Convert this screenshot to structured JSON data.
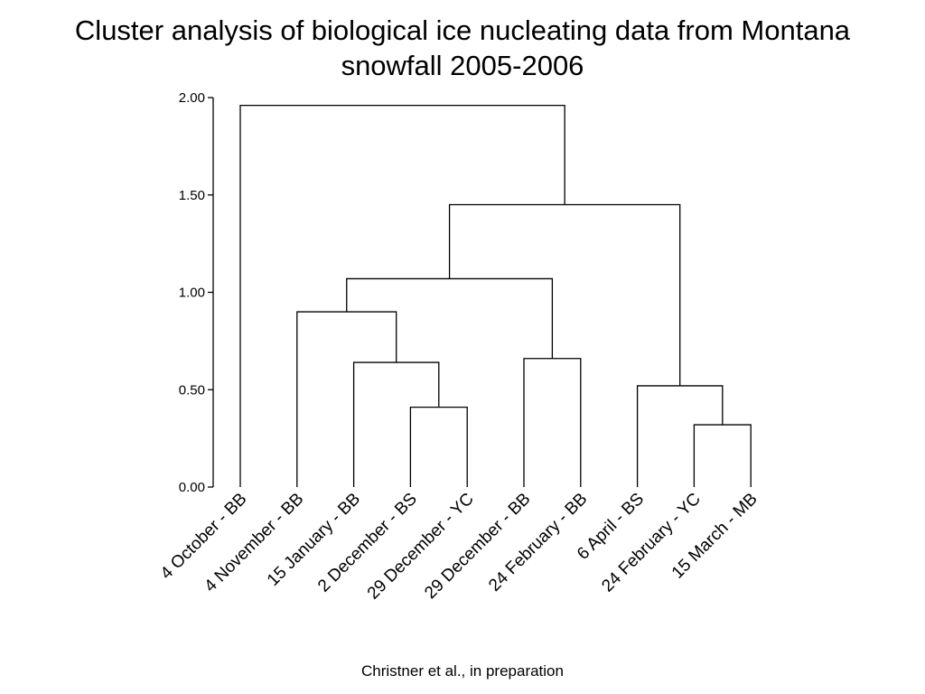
{
  "title": {
    "line1": "Cluster analysis of biological ice nucleating data from Montana",
    "line2": "snowfall 2005-2006"
  },
  "credit": "Christner et al., in preparation",
  "chart_data": {
    "type": "dendrogram",
    "title": "Cluster analysis of biological ice nucleating data from Montana snowfall 2005-2006",
    "ylim": [
      0,
      2
    ],
    "yticks": [
      "0.00",
      "0.50",
      "1.00",
      "1.50",
      "2.00"
    ],
    "ytick_values": [
      0,
      0.5,
      1.0,
      1.5,
      2.0
    ],
    "leaves": [
      "4 October - BB",
      "4 November - BB",
      "15 January - BB",
      "2 December - BS",
      "29 December - YC",
      "29 December - BB",
      "24 February - BB",
      "6 April - BS",
      "24 February - YC",
      "15 March - MB"
    ],
    "merges": [
      {
        "id": "m1",
        "left": "L3",
        "right": "L4",
        "height": 0.41
      },
      {
        "id": "m2",
        "left": "L8",
        "right": "L9",
        "height": 0.32
      },
      {
        "id": "m3",
        "left": "L7",
        "right": "m2",
        "height": 0.52
      },
      {
        "id": "m4",
        "left": "L2",
        "right": "m1",
        "height": 0.64
      },
      {
        "id": "m5",
        "left": "L5",
        "right": "L6",
        "height": 0.66
      },
      {
        "id": "m6",
        "left": "L1",
        "right": "m4",
        "height": 0.9
      },
      {
        "id": "m7",
        "left": "m6",
        "right": "m5",
        "height": 1.07
      },
      {
        "id": "m8",
        "left": "m7",
        "right": "m3",
        "height": 1.45
      },
      {
        "id": "m9",
        "left": "L0",
        "right": "m8",
        "height": 1.96
      }
    ],
    "grid": false,
    "line_color": "#000000"
  }
}
